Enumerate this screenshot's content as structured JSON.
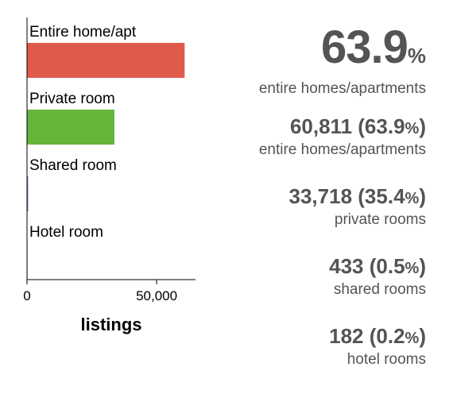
{
  "chart_data": {
    "type": "bar",
    "orientation": "horizontal",
    "categories": [
      "Entire home/apt",
      "Private room",
      "Shared room",
      "Hotel room"
    ],
    "values": [
      60811,
      33718,
      433,
      182
    ],
    "colors": [
      "#e05a4c",
      "#66b43a",
      "#8a6bc8",
      "#3b7dd8"
    ],
    "xlabel": "listings",
    "ylabel": "",
    "xlim": [
      0,
      65000
    ],
    "xticks": [
      0,
      50000
    ],
    "xtick_labels": [
      "0",
      "50,000"
    ],
    "grid": false
  },
  "summary": {
    "headline_value": "63.9",
    "headline_unit": "%",
    "headline_label": "entire homes/apartments",
    "stats": [
      {
        "value": "60,811 (63.9",
        "unit": "%",
        "close": ")",
        "label": "entire homes/apartments"
      },
      {
        "value": "33,718 (35.4",
        "unit": "%",
        "close": ")",
        "label": "private rooms"
      },
      {
        "value": "433 (0.5",
        "unit": "%",
        "close": ")",
        "label": "shared rooms"
      },
      {
        "value": "182 (0.2",
        "unit": "%",
        "close": ")",
        "label": "hotel rooms"
      }
    ]
  }
}
